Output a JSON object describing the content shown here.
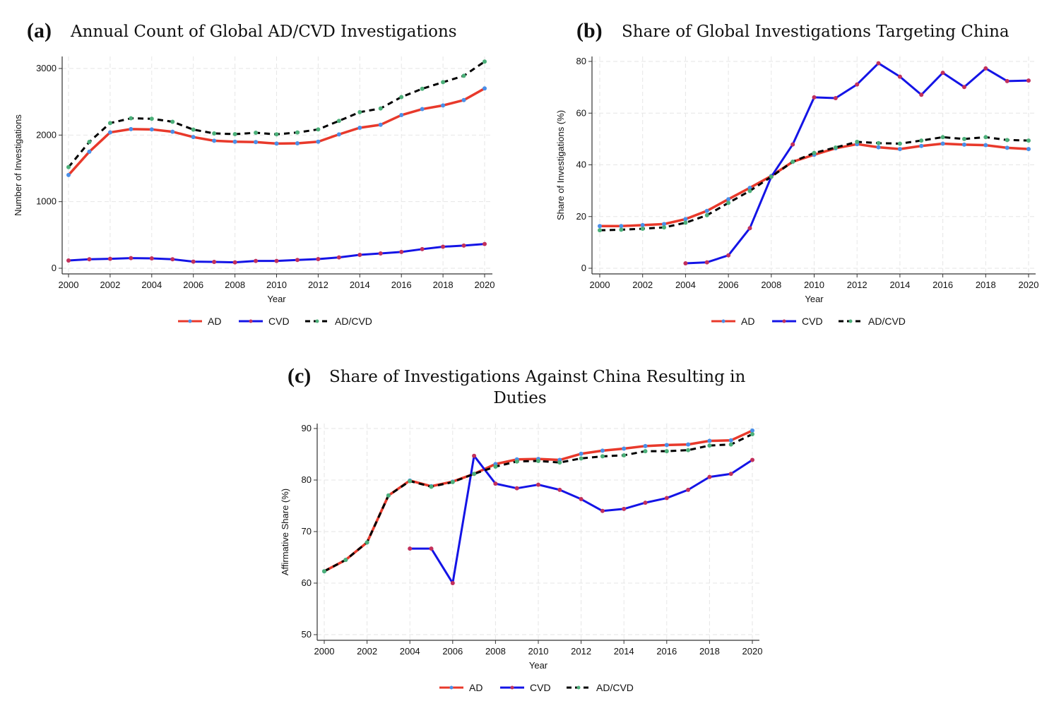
{
  "colors": {
    "AD": "#e8392b",
    "CVD": "#1414e6",
    "ADCVD": "#000000",
    "AD_marker": "#4a8fe8",
    "CVD_marker": "#c2305c",
    "ADCVD_marker": "#4cb07a"
  },
  "chart_data": [
    {
      "type": "line",
      "panel_label": "(a)",
      "title": "Annual Count of Global AD/CVD Investigations",
      "xlabel": "Year",
      "ylabel": "Number of Investigations",
      "xlim": [
        2000,
        2020
      ],
      "ylim": [
        0,
        3000
      ],
      "xticks": [
        2000,
        2002,
        2004,
        2006,
        2008,
        2010,
        2012,
        2014,
        2016,
        2018,
        2020
      ],
      "yticks": [
        0,
        1000,
        2000,
        3000
      ],
      "grid": true,
      "legend": "bottom",
      "x": [
        2000,
        2001,
        2002,
        2003,
        2004,
        2005,
        2006,
        2007,
        2008,
        2009,
        2010,
        2011,
        2012,
        2013,
        2014,
        2015,
        2016,
        2017,
        2018,
        2019,
        2020
      ],
      "series": [
        {
          "name": "AD",
          "values": [
            1400,
            1750,
            2040,
            2090,
            2085,
            2050,
            1970,
            1915,
            1900,
            1895,
            1872,
            1876,
            1900,
            2010,
            2110,
            2155,
            2300,
            2390,
            2445,
            2525,
            2700
          ]
        },
        {
          "name": "CVD",
          "values": [
            117,
            135,
            142,
            152,
            149,
            135,
            99,
            96,
            89,
            110,
            110,
            124,
            138,
            163,
            202,
            223,
            245,
            287,
            323,
            340,
            365
          ]
        },
        {
          "name": "AD/CVD",
          "values": [
            1518,
            1897,
            2180,
            2252,
            2245,
            2200,
            2082,
            2025,
            2014,
            2035,
            2011,
            2039,
            2085,
            2213,
            2344,
            2400,
            2571,
            2695,
            2794,
            2890,
            3103
          ]
        }
      ]
    },
    {
      "type": "line",
      "panel_label": "(b)",
      "title": "Share of Global Investigations Targeting China",
      "xlabel": "Year",
      "ylabel": "Share of Investigations (%)",
      "xlim": [
        2000,
        2020
      ],
      "ylim": [
        0,
        80
      ],
      "xticks": [
        2000,
        2002,
        2004,
        2006,
        2008,
        2010,
        2012,
        2014,
        2016,
        2018,
        2020
      ],
      "yticks": [
        0,
        20,
        40,
        60,
        80
      ],
      "grid": true,
      "legend": "bottom",
      "x": [
        2000,
        2001,
        2002,
        2003,
        2004,
        2005,
        2006,
        2007,
        2008,
        2009,
        2010,
        2011,
        2012,
        2013,
        2014,
        2015,
        2016,
        2017,
        2018,
        2019,
        2020
      ],
      "series": [
        {
          "name": "AD",
          "values": [
            16.3,
            16.3,
            16.7,
            17.1,
            19.0,
            22.2,
            26.7,
            31.1,
            35.7,
            41.2,
            43.9,
            46.4,
            48.0,
            46.8,
            46.1,
            47.3,
            48.2,
            47.8,
            47.6,
            46.6,
            46.1
          ]
        },
        {
          "name": "CVD",
          "values": [
            null,
            null,
            null,
            null,
            1.9,
            2.3,
            5.0,
            15.5,
            35.4,
            47.9,
            66.1,
            65.8,
            71.1,
            79.3,
            74.1,
            67.1,
            75.6,
            70.1,
            77.3,
            72.4,
            72.6
          ]
        },
        {
          "name": "AD/CVD",
          "values": [
            14.7,
            14.9,
            15.3,
            15.8,
            17.6,
            20.5,
            25.3,
            29.9,
            35.4,
            41.2,
            44.6,
            46.7,
            48.9,
            48.4,
            48.2,
            49.4,
            50.7,
            50.0,
            50.7,
            49.6,
            49.4
          ]
        }
      ]
    },
    {
      "type": "line",
      "panel_label": "(c)",
      "title": "Share of Investigations Against China Resulting in",
      "title_line2": "Duties",
      "xlabel": "Year",
      "ylabel": "Affirmative Share (%)",
      "xlim": [
        2000,
        2020
      ],
      "ylim": [
        50,
        90
      ],
      "xticks": [
        2000,
        2002,
        2004,
        2006,
        2008,
        2010,
        2012,
        2014,
        2016,
        2018,
        2020
      ],
      "yticks": [
        50,
        60,
        70,
        80,
        90
      ],
      "grid": true,
      "legend": "bottom",
      "x": [
        2000,
        2001,
        2002,
        2003,
        2004,
        2005,
        2006,
        2007,
        2008,
        2009,
        2010,
        2011,
        2012,
        2013,
        2014,
        2015,
        2016,
        2017,
        2018,
        2019,
        2020
      ],
      "series": [
        {
          "name": "AD",
          "values": [
            62.3,
            64.5,
            67.9,
            77.0,
            79.9,
            78.8,
            79.7,
            81.2,
            83.1,
            84.0,
            84.1,
            83.9,
            85.1,
            85.7,
            86.1,
            86.6,
            86.8,
            86.9,
            87.6,
            87.7,
            89.6
          ]
        },
        {
          "name": "CVD",
          "values": [
            null,
            null,
            null,
            null,
            66.7,
            66.7,
            60.0,
            84.7,
            79.3,
            78.4,
            79.1,
            78.1,
            76.3,
            74.0,
            74.4,
            75.6,
            76.5,
            78.1,
            80.6,
            81.2,
            83.9
          ]
        },
        {
          "name": "AD/CVD",
          "values": [
            62.3,
            64.5,
            67.9,
            77.0,
            79.8,
            78.7,
            79.6,
            81.2,
            82.6,
            83.6,
            83.7,
            83.4,
            84.2,
            84.6,
            84.8,
            85.6,
            85.6,
            85.8,
            86.7,
            86.9,
            88.9
          ]
        }
      ]
    }
  ]
}
